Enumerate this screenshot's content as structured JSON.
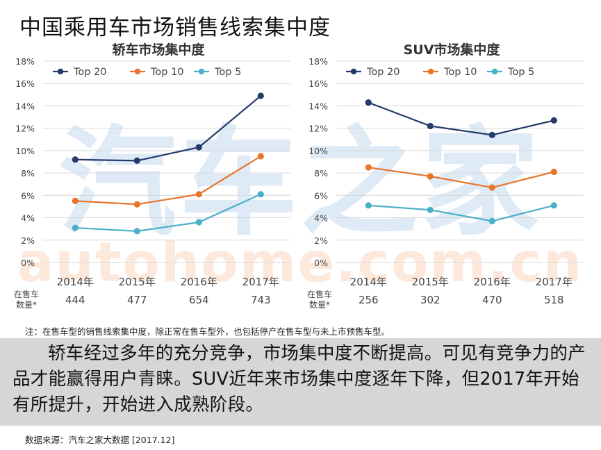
{
  "page": {
    "title": "中国乘用车市场销售线索集中度",
    "note": "注：在售车型的销售线索集中度，除正常在售车型外，也包括停产在售车型与未上市预售车型。",
    "summary": "轿车经过多年的充分竞争，市场集中度不断提高。可见有竞争力的产品才能赢得用户青睐。SUV近年来市场集中度逐年下降，但2017年开始有所提升，开始进入成熟阶段。",
    "source": "数据来源：汽车之家大数据 [2017.12]",
    "watermark_cn": "汽车之家",
    "watermark_en": "autohome.com.cn"
  },
  "colors": {
    "top20": "#233a6b",
    "top10": "#e8752a",
    "top5": "#4aafc9",
    "grid": "#d9d9d9",
    "watermark_cn": "#d3e3f2",
    "watermark_en": "#fbe3d2"
  },
  "chart_data": [
    {
      "type": "line",
      "title": "轿车市场集中度",
      "categories": [
        "2014年",
        "2015年",
        "2016年",
        "2017年"
      ],
      "ylim": [
        0,
        18
      ],
      "yticks": [
        "0%",
        "2%",
        "4%",
        "6%",
        "8%",
        "10%",
        "12%",
        "14%",
        "16%",
        "18%"
      ],
      "series": [
        {
          "name": "Top 20",
          "values": [
            9.2,
            9.1,
            10.3,
            14.9
          ]
        },
        {
          "name": "Top 10",
          "values": [
            5.5,
            5.2,
            6.1,
            9.5
          ]
        },
        {
          "name": "Top 5",
          "values": [
            3.1,
            2.8,
            3.6,
            6.1
          ]
        }
      ],
      "legend_position": "top-left",
      "count_label": "在售车数量*",
      "counts": [
        "444",
        "477",
        "654",
        "743"
      ]
    },
    {
      "type": "line",
      "title": "SUV市场集中度",
      "categories": [
        "2014年",
        "2015年",
        "2016年",
        "2017年"
      ],
      "ylim": [
        0,
        18
      ],
      "yticks": [
        "0%",
        "2%",
        "4%",
        "6%",
        "8%",
        "10%",
        "12%",
        "14%",
        "16%",
        "18%"
      ],
      "series": [
        {
          "name": "Top 20",
          "values": [
            14.3,
            12.2,
            11.4,
            12.7
          ]
        },
        {
          "name": "Top 10",
          "values": [
            8.5,
            7.7,
            6.7,
            8.1
          ]
        },
        {
          "name": "Top 5",
          "values": [
            5.1,
            4.7,
            3.7,
            5.1
          ]
        }
      ],
      "legend_position": "top-left",
      "count_label": "在售车数量*",
      "counts": [
        "256",
        "302",
        "470",
        "518"
      ]
    }
  ]
}
